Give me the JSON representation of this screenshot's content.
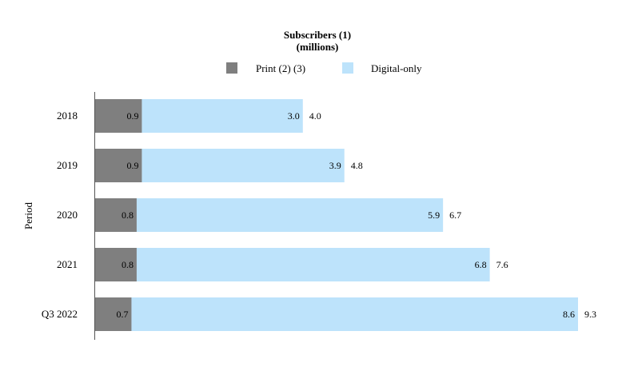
{
  "chart_data": {
    "type": "bar",
    "orientation": "horizontal",
    "stacked": true,
    "title": "Subscribers (1)",
    "subtitle": "(millions)",
    "ylabel": "Period",
    "xlabel": "",
    "categories": [
      "2018",
      "2019",
      "2020",
      "2021",
      "Q3 2022"
    ],
    "series": [
      {
        "name": "Print (2) (3)",
        "values": [
          0.9,
          0.9,
          0.8,
          0.8,
          0.7
        ],
        "color": "#7f7f7f"
      },
      {
        "name": "Digital-only",
        "values": [
          3.0,
          3.9,
          5.9,
          6.8,
          8.6
        ],
        "color": "#bde3fb"
      }
    ],
    "totals": [
      4.0,
      4.8,
      6.7,
      7.6,
      9.3
    ],
    "value_labels": {
      "print": [
        "0.9",
        "0.9",
        "0.8",
        "0.8",
        "0.7"
      ],
      "digital": [
        "3.0",
        "3.9",
        "5.9",
        "6.8",
        "8.6"
      ],
      "totals": [
        "4.0",
        "4.8",
        "6.7",
        "7.6",
        "9.3"
      ]
    },
    "xlim": [
      0,
      9.3
    ],
    "grid": false,
    "legend_position": "top-center"
  }
}
